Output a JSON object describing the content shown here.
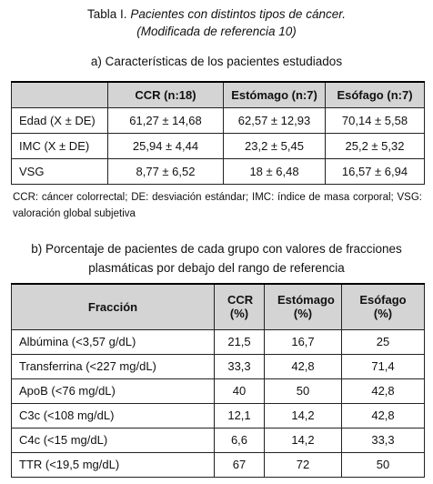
{
  "title": {
    "label": "Tabla I.",
    "lines": [
      "Pacientes con distintos tipos de cáncer.",
      "(Modificada de referencia 10)"
    ]
  },
  "table_a": {
    "caption": "a) Características de los pacientes estudiados",
    "header": [
      "CCR (n:18)",
      "Estómago (n:7)",
      "Esófago (n:7)"
    ],
    "rows": [
      [
        "Edad (X ± DE)",
        "61,27 ± 14,68",
        "62,57 ± 12,93",
        "70,14 ± 5,58"
      ],
      [
        "IMC (X ± DE)",
        "25,94 ± 4,44",
        "23,2 ± 5,45",
        "25,2 ± 5,32"
      ],
      [
        "VSG",
        "8,77 ± 6,52",
        "18 ± 6,48",
        "16,57 ± 6,94"
      ]
    ]
  },
  "footnote": "CCR: cáncer colorrectal; DE: desviación estándar; IMC: índice de masa corporal; VSG: valoración global subjetiva",
  "table_b": {
    "caption": "b) Porcentaje de pacientes de cada grupo con valores de fracciones plasmáticas por debajo del rango de referencia",
    "header": [
      "Fracción",
      "CCR (%)",
      "Estómago (%)",
      "Esófago (%)"
    ],
    "rows": [
      [
        "Albúmina (<3,57 g/dL)",
        "21,5",
        "16,7",
        "25"
      ],
      [
        "Transferrina (<227 mg/dL)",
        "33,3",
        "42,8",
        "71,4"
      ],
      [
        "ApoB (<76 mg/dL)",
        "40",
        "50",
        "42,8"
      ],
      [
        "C3c (<108 mg/dL)",
        "12,1",
        "14,2",
        "42,8"
      ],
      [
        "C4c (<15 mg/dL)",
        "6,6",
        "14,2",
        "33,3"
      ],
      [
        "TTR (<19,5 mg/dL)",
        "67",
        "72",
        "50"
      ]
    ]
  }
}
